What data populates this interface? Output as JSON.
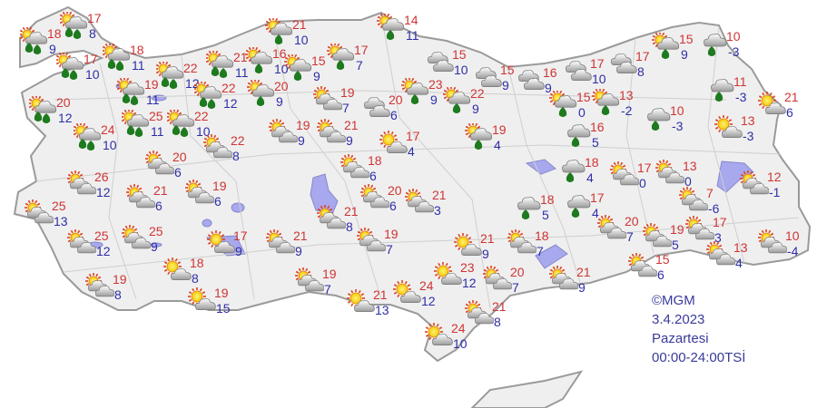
{
  "map": {
    "land_color": "#efefef",
    "border_color": "#9a9a9a",
    "lake_color": "#a8a8ee",
    "max_temp_color": "#d03434",
    "min_temp_color": "#2e2ea8"
  },
  "stations": [
    {
      "icon": "partly-cloudy-rain-showers",
      "max": "18",
      "min": "9"
    },
    {
      "icon": "partly-cloudy-rain-showers",
      "max": "17",
      "min": "8"
    },
    {
      "icon": "partly-cloudy-rain-showers",
      "max": "17",
      "min": "10"
    },
    {
      "icon": "partly-cloudy-rain-showers",
      "max": "18",
      "min": "11"
    },
    {
      "icon": "partly-cloudy-rain-showers",
      "max": "22",
      "min": "12"
    },
    {
      "icon": "partly-cloudy-rain-showers",
      "max": "20",
      "min": "12"
    },
    {
      "icon": "partly-cloudy-rain-showers",
      "max": "19",
      "min": "11"
    },
    {
      "icon": "partly-cloudy-rain-showers",
      "max": "21",
      "min": "11"
    },
    {
      "icon": "partly-cloudy-rain-showers",
      "max": "22",
      "min": "12"
    },
    {
      "icon": "partly-cloudy-rain-showers",
      "max": "24",
      "min": "10"
    },
    {
      "icon": "partly-cloudy-rain-showers",
      "max": "25",
      "min": "11"
    },
    {
      "icon": "partly-cloudy-rain-showers",
      "max": "22",
      "min": "10"
    },
    {
      "icon": "partly-cloudy-rain",
      "max": "16",
      "min": "10"
    },
    {
      "icon": "partly-cloudy-rain",
      "max": "21",
      "min": "10"
    },
    {
      "icon": "partly-cloudy-rain",
      "max": "15",
      "min": "9"
    },
    {
      "icon": "partly-cloudy-rain",
      "max": "17",
      "min": "7"
    },
    {
      "icon": "partly-cloudy-rain",
      "max": "14",
      "min": "11"
    },
    {
      "icon": "partly-cloudy-rain",
      "max": "20",
      "min": "9"
    },
    {
      "icon": "partly-cloudy",
      "max": "19",
      "min": "7"
    },
    {
      "icon": "cloudy",
      "max": "20",
      "min": "6"
    },
    {
      "icon": "cloudy",
      "max": "15",
      "min": "10"
    },
    {
      "icon": "cloudy",
      "max": "15",
      "min": "9"
    },
    {
      "icon": "partly-cloudy-rain",
      "max": "23",
      "min": "9"
    },
    {
      "icon": "partly-cloudy-rain",
      "max": "22",
      "min": "9"
    },
    {
      "icon": "cloudy",
      "max": "16",
      "min": "9"
    },
    {
      "icon": "cloudy",
      "max": "17",
      "min": "10"
    },
    {
      "icon": "cloudy",
      "max": "17",
      "min": "8"
    },
    {
      "icon": "partly-cloudy-rain",
      "max": "15",
      "min": "9"
    },
    {
      "icon": "cloudy-rain",
      "max": "10",
      "min": "-3"
    },
    {
      "icon": "partly-cloudy-rain",
      "max": "15",
      "min": "0"
    },
    {
      "icon": "partly-cloudy-rain",
      "max": "13",
      "min": "-2"
    },
    {
      "icon": "cloudy-rain",
      "max": "10",
      "min": "-3"
    },
    {
      "icon": "cloudy-rain",
      "max": "11",
      "min": "-3"
    },
    {
      "icon": "mostly-sunny",
      "max": "21",
      "min": "6"
    },
    {
      "icon": "mostly-sunny",
      "max": "13",
      "min": "-3"
    },
    {
      "icon": "cloudy-rain",
      "max": "16",
      "min": "5"
    },
    {
      "icon": "partly-cloudy-rain",
      "max": "19",
      "min": "4"
    },
    {
      "icon": "partly-cloudy",
      "max": "19",
      "min": "9"
    },
    {
      "icon": "partly-cloudy",
      "max": "21",
      "min": "9"
    },
    {
      "icon": "mostly-sunny",
      "max": "17",
      "min": "4"
    },
    {
      "icon": "partly-cloudy",
      "max": "22",
      "min": "8"
    },
    {
      "icon": "partly-cloudy",
      "max": "20",
      "min": "6"
    },
    {
      "icon": "partly-cloudy",
      "max": "18",
      "min": "6"
    },
    {
      "icon": "partly-cloudy",
      "max": "20",
      "min": "6"
    },
    {
      "icon": "partly-cloudy",
      "max": "21",
      "min": "3"
    },
    {
      "icon": "partly-cloudy",
      "max": "21",
      "min": "8"
    },
    {
      "icon": "partly-cloudy",
      "max": "19",
      "min": "7"
    },
    {
      "icon": "partly-cloudy",
      "max": "21",
      "min": "9"
    },
    {
      "icon": "partly-cloudy",
      "max": "19",
      "min": "7"
    },
    {
      "icon": "partly-cloudy",
      "max": "19",
      "min": "6"
    },
    {
      "icon": "partly-cloudy",
      "max": "21",
      "min": "6"
    },
    {
      "icon": "partly-cloudy",
      "max": "26",
      "min": "12"
    },
    {
      "icon": "partly-cloudy",
      "max": "25",
      "min": "13"
    },
    {
      "icon": "partly-cloudy",
      "max": "25",
      "min": "12"
    },
    {
      "icon": "partly-cloudy",
      "max": "25",
      "min": "9"
    },
    {
      "icon": "mostly-sunny",
      "max": "17",
      "min": "9"
    },
    {
      "icon": "mostly-sunny",
      "max": "18",
      "min": "8"
    },
    {
      "icon": "partly-cloudy",
      "max": "19",
      "min": "8"
    },
    {
      "icon": "mostly-sunny",
      "max": "19",
      "min": "15"
    },
    {
      "icon": "mostly-sunny",
      "max": "21",
      "min": "13"
    },
    {
      "icon": "mostly-sunny",
      "max": "24",
      "min": "12"
    },
    {
      "icon": "mostly-sunny",
      "max": "23",
      "min": "12"
    },
    {
      "icon": "mostly-sunny",
      "max": "21",
      "min": "9"
    },
    {
      "icon": "partly-cloudy",
      "max": "20",
      "min": "7"
    },
    {
      "icon": "partly-cloudy",
      "max": "21",
      "min": "8"
    },
    {
      "icon": "mostly-sunny",
      "max": "24",
      "min": "10"
    },
    {
      "icon": "partly-cloudy",
      "max": "18",
      "min": "7"
    },
    {
      "icon": "cloudy-rain",
      "max": "18",
      "min": "5"
    },
    {
      "icon": "cloudy-rain",
      "max": "18",
      "min": "4"
    },
    {
      "icon": "cloudy-rain",
      "max": "17",
      "min": "4"
    },
    {
      "icon": "partly-cloudy",
      "max": "21",
      "min": "9"
    },
    {
      "icon": "partly-cloudy",
      "max": "17",
      "min": "0"
    },
    {
      "icon": "partly-cloudy",
      "max": "13",
      "min": "0"
    },
    {
      "icon": "partly-cloudy",
      "max": "7",
      "min": "-6"
    },
    {
      "icon": "partly-cloudy",
      "max": "12",
      "min": "-1"
    },
    {
      "icon": "partly-cloudy",
      "max": "20",
      "min": "7"
    },
    {
      "icon": "partly-cloudy",
      "max": "19",
      "min": "5"
    },
    {
      "icon": "partly-cloudy",
      "max": "17",
      "min": "3"
    },
    {
      "icon": "partly-cloudy",
      "max": "15",
      "min": "6"
    },
    {
      "icon": "partly-cloudy",
      "max": "13",
      "min": "4"
    },
    {
      "icon": "partly-cloudy",
      "max": "10",
      "min": "-4"
    }
  ],
  "credit": {
    "source": "©MGM",
    "date": "3.4.2023",
    "day": "Pazartesi",
    "time_range": "00:00-24:00TSİ"
  }
}
